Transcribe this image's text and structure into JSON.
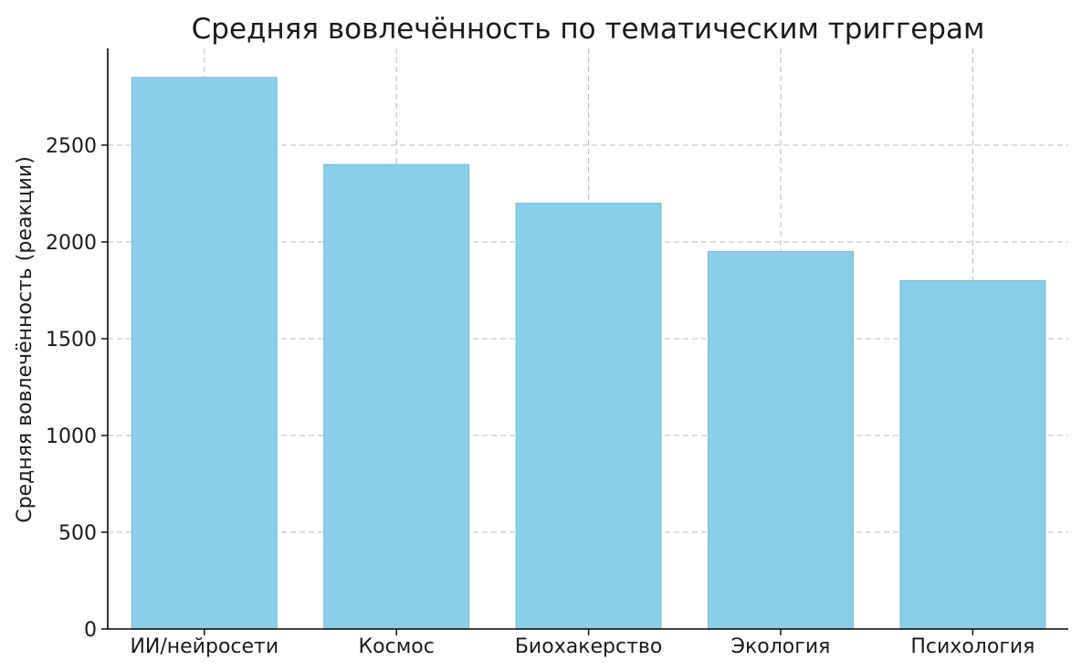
{
  "chart_data": {
    "type": "bar",
    "title": "Средняя вовлечённость по тематическим триггерам",
    "xlabel": "",
    "ylabel": "Средняя вовлечённость (реакции)",
    "categories": [
      "ИИ/нейросети",
      "Космос",
      "Биохакерство",
      "Экология",
      "Психология"
    ],
    "values": [
      2850,
      2400,
      2200,
      1950,
      1800
    ],
    "ylim": [
      0,
      3000
    ],
    "yticks": [
      0,
      500,
      1000,
      1500,
      2000,
      2500
    ],
    "grid": true,
    "colors": {
      "bar": "#87ceeb",
      "edge": "#6fb8d3",
      "grid": "#b8b8b8",
      "axis": "#000000"
    }
  }
}
